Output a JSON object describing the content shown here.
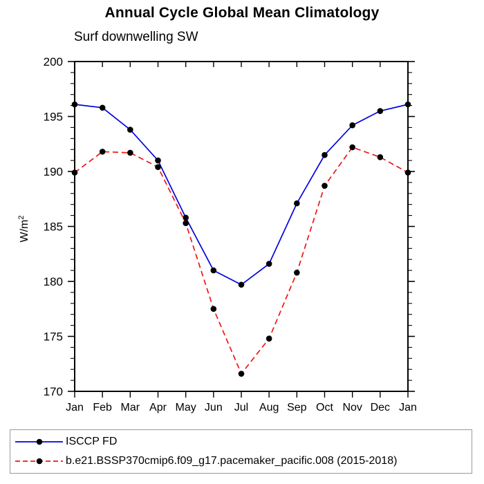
{
  "chart_data": {
    "type": "line",
    "title": "Annual Cycle Global Mean Climatology",
    "subtitle": "Surf downwelling SW",
    "ylabel": "W/m^2",
    "ylabel_base": "W/m",
    "ylabel_sup": "2",
    "xlabel": "",
    "categories": [
      "Jan",
      "Feb",
      "Mar",
      "Apr",
      "May",
      "Jun",
      "Jul",
      "Aug",
      "Sep",
      "Oct",
      "Nov",
      "Dec",
      "Jan"
    ],
    "ylim": [
      170,
      200
    ],
    "y_major_ticks": [
      170,
      175,
      180,
      185,
      190,
      195,
      200
    ],
    "y_minor_step": 1,
    "grid": false,
    "legend_position": "bottom",
    "axis_color": "#000000",
    "marker_color": "#000000",
    "series": [
      {
        "name": "ISCCP FD",
        "color": "#0000e0",
        "style": "solid",
        "marker": "filled-circle",
        "values": [
          196.1,
          195.8,
          193.8,
          191.0,
          185.8,
          181.0,
          179.7,
          181.6,
          187.1,
          191.5,
          194.2,
          195.5,
          196.1
        ]
      },
      {
        "name": "b.e21.BSSP370cmip6.f09_g17.pacemaker_pacific.008 (2015-2018)",
        "color": "#f01414",
        "style": "dashed",
        "marker": "filled-circle",
        "values": [
          189.9,
          191.8,
          191.7,
          190.4,
          185.3,
          177.5,
          171.6,
          174.8,
          180.8,
          188.7,
          192.2,
          191.3,
          189.9
        ]
      }
    ]
  }
}
